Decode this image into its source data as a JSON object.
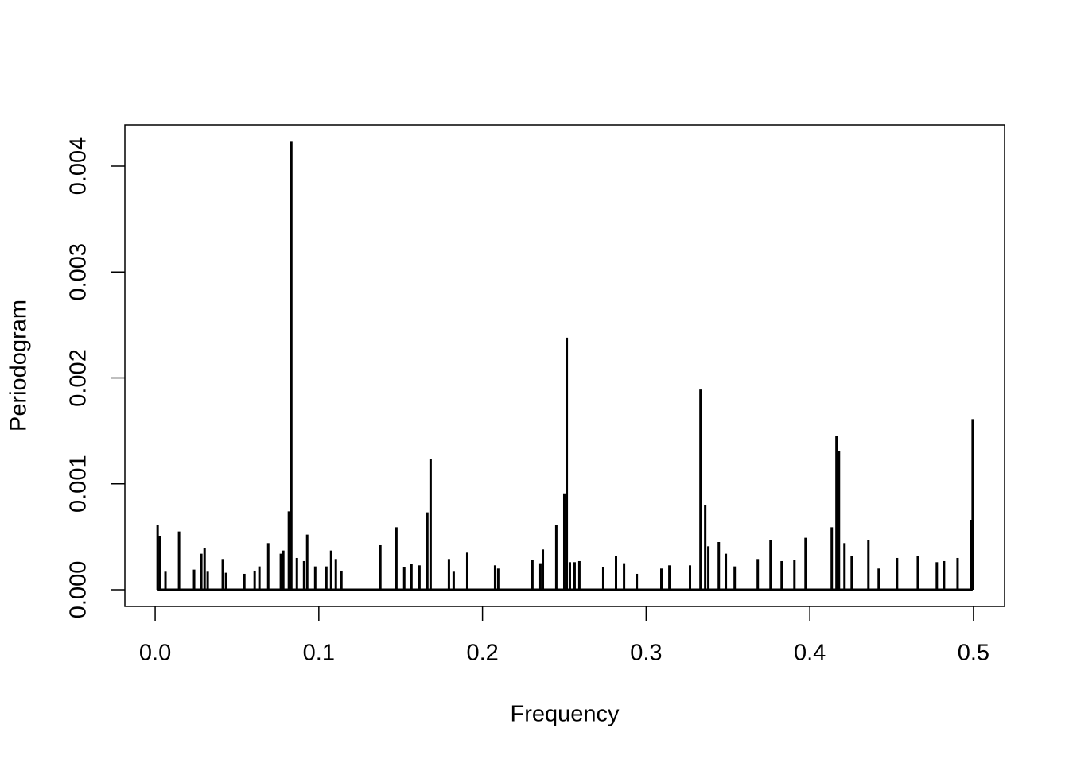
{
  "chart_data": {
    "type": "spike",
    "xlabel": "Frequency",
    "ylabel": "Periodogram",
    "color": "#000000",
    "x": [
      0.0015,
      0.0029,
      0.0063,
      0.0146,
      0.0238,
      0.0282,
      0.0302,
      0.0321,
      0.0413,
      0.0433,
      0.0545,
      0.0608,
      0.0637,
      0.0691,
      0.0768,
      0.0783,
      0.0817,
      0.0832,
      0.0866,
      0.091,
      0.0929,
      0.0978,
      0.1046,
      0.1075,
      0.1104,
      0.1138,
      0.1376,
      0.1474,
      0.1522,
      0.1566,
      0.1615,
      0.1663,
      0.1683,
      0.1795,
      0.1824,
      0.1907,
      0.2077,
      0.2096,
      0.2305,
      0.2354,
      0.2369,
      0.2451,
      0.25,
      0.2515,
      0.2534,
      0.2563,
      0.2592,
      0.2738,
      0.2816,
      0.2865,
      0.2943,
      0.3093,
      0.3142,
      0.3268,
      0.3332,
      0.3361,
      0.338,
      0.3444,
      0.3487,
      0.3541,
      0.3682,
      0.376,
      0.3828,
      0.3906,
      0.3974,
      0.4134,
      0.4163,
      0.4178,
      0.4212,
      0.4256,
      0.4358,
      0.4421,
      0.4533,
      0.466,
      0.4776,
      0.482,
      0.4903,
      0.4985,
      0.4995
    ],
    "values": [
      0.00061,
      0.00051,
      0.00017,
      0.00055,
      0.00019,
      0.00034,
      0.00039,
      0.00017,
      0.00029,
      0.00016,
      0.00015,
      0.00018,
      0.00022,
      0.00044,
      0.00034,
      0.00037,
      0.00074,
      0.00423,
      0.0003,
      0.00027,
      0.00052,
      0.00022,
      0.00022,
      0.00037,
      0.00029,
      0.00018,
      0.00042,
      0.00059,
      0.00021,
      0.00024,
      0.00023,
      0.00073,
      0.00123,
      0.00029,
      0.00017,
      0.00035,
      0.00023,
      0.0002,
      0.00028,
      0.00025,
      0.00038,
      0.00061,
      0.00091,
      0.00238,
      0.00026,
      0.00026,
      0.00027,
      0.00021,
      0.00032,
      0.00025,
      0.00015,
      0.0002,
      0.00023,
      0.00023,
      0.00189,
      0.0008,
      0.00041,
      0.00045,
      0.00034,
      0.00022,
      0.00029,
      0.00047,
      0.00027,
      0.00028,
      0.00049,
      0.00059,
      0.00145,
      0.00131,
      0.00044,
      0.00032,
      0.00047,
      0.0002,
      0.0003,
      0.00032,
      0.00026,
      0.00027,
      0.0003,
      0.00066,
      0.00161
    ],
    "xlim": [
      -0.0185,
      0.519
    ],
    "xticks": [
      {
        "value": 0,
        "label": "0.0"
      },
      0.1,
      0.2,
      0.3,
      0.4,
      0.5
    ],
    "ylim": [
      -0.000158,
      0.00439
    ],
    "yticks": [
      {
        "value": 0,
        "label": "0.000"
      },
      0.001,
      0.002,
      0.003,
      0.004
    ]
  }
}
